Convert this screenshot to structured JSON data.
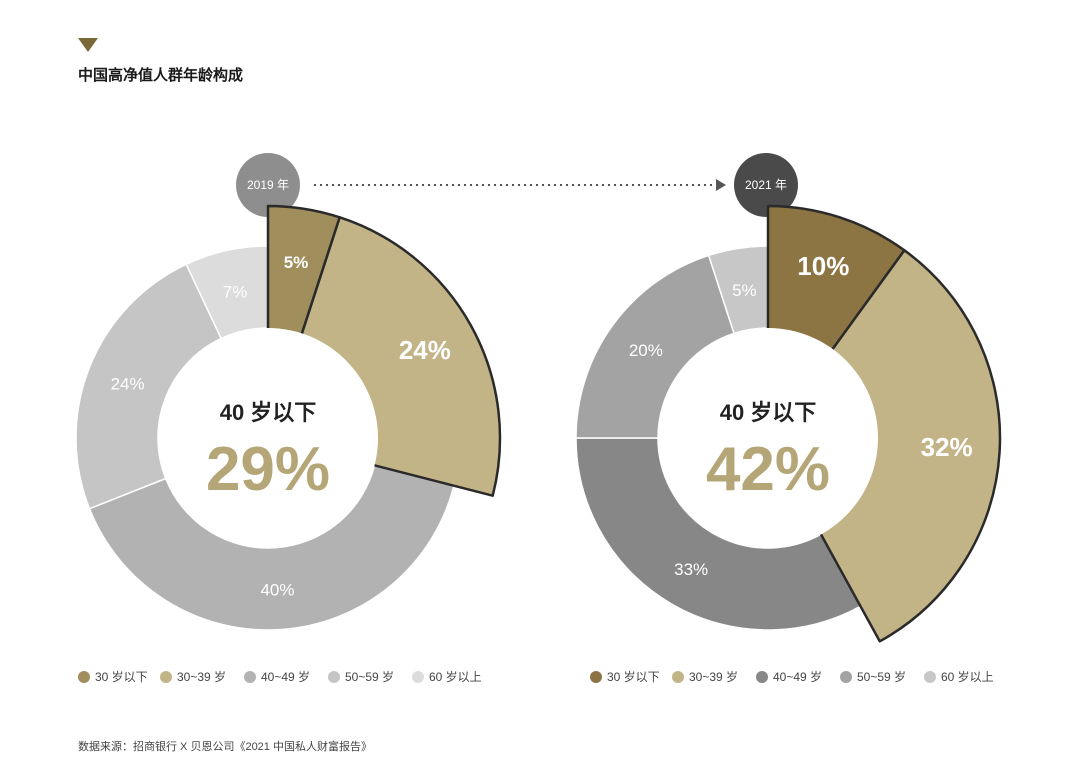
{
  "title": "中国高净值人群年龄构成",
  "source": "数据来源：招商银行 X 贝恩公司《2021 中国私人财富报告》",
  "colors": {
    "under30": "#a08e5c",
    "s30_39": "#c2b487",
    "s40_49": "#b2b2b2",
    "s50_59": "#c5c5c5",
    "s60plus": "#dcdcdc",
    "y2019_under30": "#a08e5c",
    "y2021_under30": "#8c7443",
    "y2021_40_49": "#878787",
    "y2021_50_59": "#a3a3a3",
    "y2021_60plus": "#c7c7c7",
    "center_value": "#b5a677",
    "badge2019": "#8e8e8e",
    "badge2021": "#4a4a4a"
  },
  "chart_data": [
    {
      "type": "pie",
      "year_label": "2019 年",
      "categories": [
        "30 岁以下",
        "30~39 岁",
        "40~49 岁",
        "50~59 岁",
        "60 岁以上"
      ],
      "values": [
        5,
        24,
        40,
        24,
        7
      ],
      "labels": [
        "5%",
        "24%",
        "40%",
        "24%",
        "7%"
      ],
      "highlighted": [
        "30 岁以下",
        "30~39 岁"
      ],
      "center_label": "40 岁以下",
      "center_value": "29%",
      "legend_position": "bottom"
    },
    {
      "type": "pie",
      "year_label": "2021 年",
      "categories": [
        "30 岁以下",
        "30~39 岁",
        "40~49 岁",
        "50~59 岁",
        "60 岁以上"
      ],
      "values": [
        10,
        32,
        33,
        20,
        5
      ],
      "labels": [
        "10%",
        "32%",
        "33%",
        "20%",
        "5%"
      ],
      "highlighted": [
        "30 岁以下",
        "30~39 岁"
      ],
      "center_label": "40 岁以下",
      "center_value": "42%",
      "legend_position": "bottom"
    }
  ],
  "legend": [
    {
      "label": "30 岁以下"
    },
    {
      "label": "30~39 岁"
    },
    {
      "label": "40~49 岁"
    },
    {
      "label": "50~59 岁"
    },
    {
      "label": "60 岁以上"
    }
  ]
}
